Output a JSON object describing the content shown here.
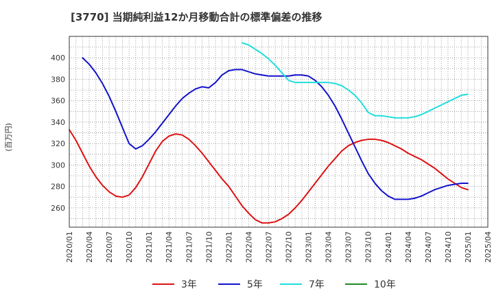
{
  "chart_data": {
    "type": "line",
    "title": "[3770]  当期純利益12か月移動合計の標準偏差の推移",
    "ylabel": "(百万円)",
    "xlabel": "",
    "ylim": [
      242,
      420
    ],
    "yticks": [
      260,
      280,
      300,
      320,
      340,
      360,
      380,
      400
    ],
    "x_range": [
      "2020-01",
      "2025-04"
    ],
    "x_ticks": [
      "2020/01",
      "2020/04",
      "2020/07",
      "2020/10",
      "2021/01",
      "2021/04",
      "2021/07",
      "2021/10",
      "2022/01",
      "2022/04",
      "2022/07",
      "2022/10",
      "2023/01",
      "2023/04",
      "2023/07",
      "2023/10",
      "2024/01",
      "2024/04",
      "2024/07",
      "2024/10",
      "2025/01",
      "2025/04"
    ],
    "grid": true,
    "legend_position": "bottom",
    "series": [
      {
        "name": "3年",
        "color": "#dd1111",
        "points": [
          [
            "2020-01",
            333
          ],
          [
            "2020-02",
            323
          ],
          [
            "2020-03",
            311
          ],
          [
            "2020-04",
            299
          ],
          [
            "2020-05",
            289
          ],
          [
            "2020-06",
            281
          ],
          [
            "2020-07",
            275
          ],
          [
            "2020-08",
            271
          ],
          [
            "2020-09",
            270
          ],
          [
            "2020-10",
            272
          ],
          [
            "2020-11",
            279
          ],
          [
            "2020-12",
            289
          ],
          [
            "2021-01",
            301
          ],
          [
            "2021-02",
            313
          ],
          [
            "2021-03",
            322
          ],
          [
            "2021-04",
            327
          ],
          [
            "2021-05",
            329
          ],
          [
            "2021-06",
            328
          ],
          [
            "2021-07",
            324
          ],
          [
            "2021-08",
            318
          ],
          [
            "2021-09",
            311
          ],
          [
            "2021-10",
            303
          ],
          [
            "2021-11",
            295
          ],
          [
            "2021-12",
            287
          ],
          [
            "2022-01",
            280
          ],
          [
            "2022-02",
            271
          ],
          [
            "2022-03",
            262
          ],
          [
            "2022-04",
            255
          ],
          [
            "2022-05",
            249
          ],
          [
            "2022-06",
            246
          ],
          [
            "2022-07",
            246
          ],
          [
            "2022-08",
            247
          ],
          [
            "2022-09",
            250
          ],
          [
            "2022-10",
            254
          ],
          [
            "2022-11",
            260
          ],
          [
            "2022-12",
            267
          ],
          [
            "2023-01",
            275
          ],
          [
            "2023-02",
            283
          ],
          [
            "2023-03",
            291
          ],
          [
            "2023-04",
            299
          ],
          [
            "2023-05",
            306
          ],
          [
            "2023-06",
            313
          ],
          [
            "2023-07",
            318
          ],
          [
            "2023-08",
            321
          ],
          [
            "2023-09",
            323
          ],
          [
            "2023-10",
            324
          ],
          [
            "2023-11",
            324
          ],
          [
            "2023-12",
            323
          ],
          [
            "2024-01",
            321
          ],
          [
            "2024-02",
            318
          ],
          [
            "2024-03",
            315
          ],
          [
            "2024-04",
            311
          ],
          [
            "2024-05",
            308
          ],
          [
            "2024-06",
            305
          ],
          [
            "2024-07",
            301
          ],
          [
            "2024-08",
            297
          ],
          [
            "2024-09",
            292
          ],
          [
            "2024-10",
            287
          ],
          [
            "2024-11",
            283
          ],
          [
            "2024-12",
            279
          ],
          [
            "2025-01",
            277
          ]
        ]
      },
      {
        "name": "5年",
        "color": "#1111cc",
        "points": [
          [
            "2020-03",
            400
          ],
          [
            "2020-04",
            394
          ],
          [
            "2020-05",
            386
          ],
          [
            "2020-06",
            376
          ],
          [
            "2020-07",
            364
          ],
          [
            "2020-08",
            350
          ],
          [
            "2020-09",
            335
          ],
          [
            "2020-10",
            320
          ],
          [
            "2020-11",
            315
          ],
          [
            "2020-12",
            318
          ],
          [
            "2021-01",
            324
          ],
          [
            "2021-02",
            331
          ],
          [
            "2021-03",
            339
          ],
          [
            "2021-04",
            347
          ],
          [
            "2021-05",
            355
          ],
          [
            "2021-06",
            362
          ],
          [
            "2021-07",
            367
          ],
          [
            "2021-08",
            371
          ],
          [
            "2021-09",
            373
          ],
          [
            "2021-10",
            372
          ],
          [
            "2021-11",
            377
          ],
          [
            "2021-12",
            384
          ],
          [
            "2022-01",
            388
          ],
          [
            "2022-02",
            389
          ],
          [
            "2022-03",
            389
          ],
          [
            "2022-04",
            387
          ],
          [
            "2022-05",
            385
          ],
          [
            "2022-06",
            384
          ],
          [
            "2022-07",
            383
          ],
          [
            "2022-08",
            383
          ],
          [
            "2022-09",
            383
          ],
          [
            "2022-10",
            383
          ],
          [
            "2022-11",
            384
          ],
          [
            "2022-12",
            384
          ],
          [
            "2023-01",
            383
          ],
          [
            "2023-02",
            379
          ],
          [
            "2023-03",
            373
          ],
          [
            "2023-04",
            365
          ],
          [
            "2023-05",
            355
          ],
          [
            "2023-06",
            343
          ],
          [
            "2023-07",
            330
          ],
          [
            "2023-08",
            317
          ],
          [
            "2023-09",
            304
          ],
          [
            "2023-10",
            292
          ],
          [
            "2023-11",
            283
          ],
          [
            "2023-12",
            276
          ],
          [
            "2024-01",
            271
          ],
          [
            "2024-02",
            268
          ],
          [
            "2024-03",
            268
          ],
          [
            "2024-04",
            268
          ],
          [
            "2024-05",
            269
          ],
          [
            "2024-06",
            271
          ],
          [
            "2024-07",
            274
          ],
          [
            "2024-08",
            277
          ],
          [
            "2024-09",
            279
          ],
          [
            "2024-10",
            281
          ],
          [
            "2024-11",
            282
          ],
          [
            "2024-12",
            283
          ],
          [
            "2025-01",
            283
          ]
        ]
      },
      {
        "name": "7年",
        "color": "#22dddd",
        "points": [
          [
            "2022-03",
            414
          ],
          [
            "2022-04",
            412
          ],
          [
            "2022-05",
            408
          ],
          [
            "2022-06",
            404
          ],
          [
            "2022-07",
            399
          ],
          [
            "2022-08",
            393
          ],
          [
            "2022-09",
            386
          ],
          [
            "2022-10",
            379
          ],
          [
            "2022-11",
            377
          ],
          [
            "2022-12",
            377
          ],
          [
            "2023-01",
            377
          ],
          [
            "2023-02",
            377
          ],
          [
            "2023-03",
            377
          ],
          [
            "2023-04",
            377
          ],
          [
            "2023-05",
            376
          ],
          [
            "2023-06",
            374
          ],
          [
            "2023-07",
            370
          ],
          [
            "2023-08",
            365
          ],
          [
            "2023-09",
            358
          ],
          [
            "2023-10",
            349
          ],
          [
            "2023-11",
            346
          ],
          [
            "2023-12",
            346
          ],
          [
            "2024-01",
            345
          ],
          [
            "2024-02",
            344
          ],
          [
            "2024-03",
            344
          ],
          [
            "2024-04",
            344
          ],
          [
            "2024-05",
            345
          ],
          [
            "2024-06",
            347
          ],
          [
            "2024-07",
            350
          ],
          [
            "2024-08",
            353
          ],
          [
            "2024-09",
            356
          ],
          [
            "2024-10",
            359
          ],
          [
            "2024-11",
            362
          ],
          [
            "2024-12",
            365
          ],
          [
            "2025-01",
            366
          ]
        ]
      },
      {
        "name": "10年",
        "color": "#228822",
        "points": []
      }
    ]
  }
}
